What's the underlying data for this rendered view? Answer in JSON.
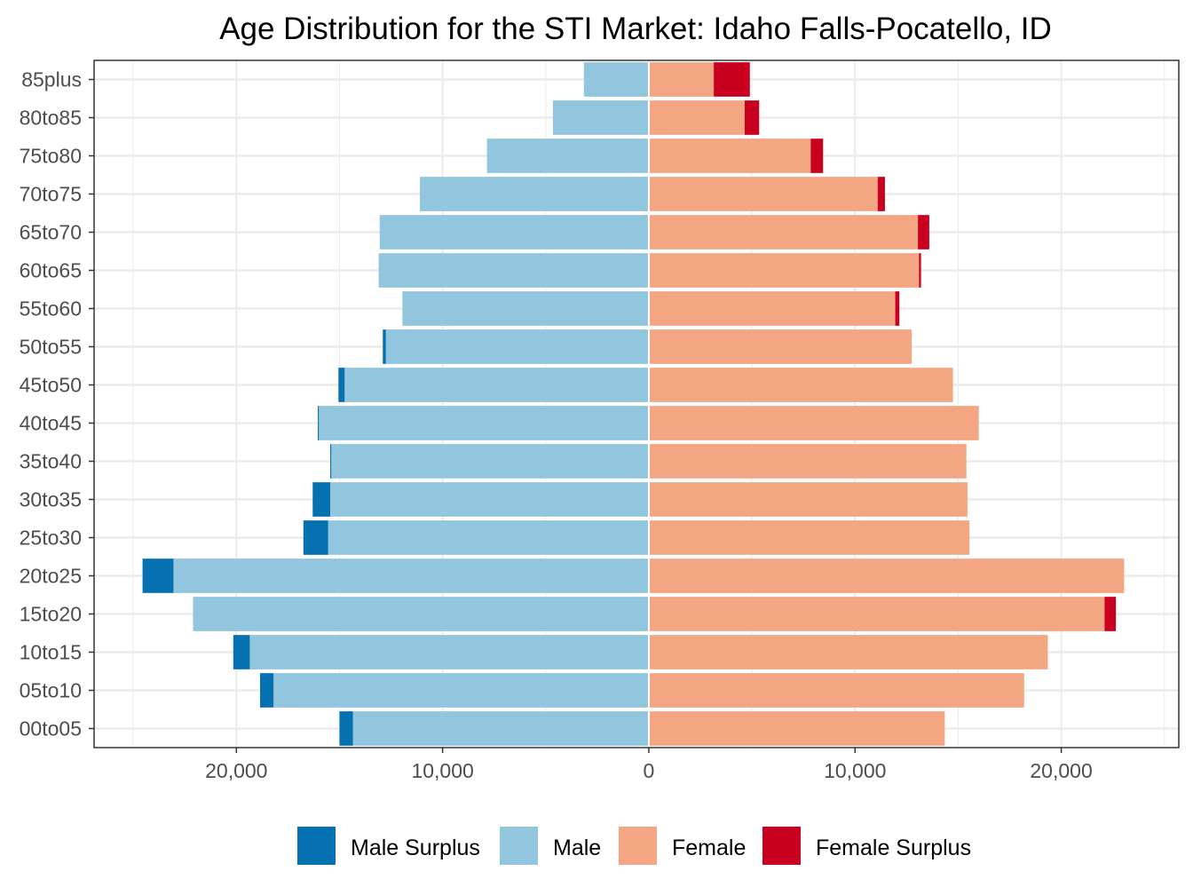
{
  "chart_data": {
    "type": "bar",
    "orientation": "horizontal",
    "title": "Age Distribution for the STI Market: Idaho Falls-Pocatello, ID",
    "xlabel": "",
    "ylabel": "",
    "xlim": [
      -26900,
      25700
    ],
    "x_ticks": [
      -20000,
      -10000,
      0,
      10000,
      20000
    ],
    "x_tick_labels": [
      "20,000",
      "10,000",
      "0",
      "10,000",
      "20,000"
    ],
    "grid": true,
    "legend_position": "bottom",
    "categories": [
      "00to05",
      "05to10",
      "10to15",
      "15to20",
      "20to25",
      "25to30",
      "30to35",
      "35to40",
      "40to45",
      "45to50",
      "50to55",
      "55to60",
      "60to65",
      "65to70",
      "70to75",
      "75to80",
      "80to85",
      "85plus"
    ],
    "male": [
      15000,
      18850,
      20150,
      22100,
      24550,
      16750,
      16300,
      15450,
      16050,
      15050,
      12900,
      11950,
      13100,
      13050,
      11100,
      7850,
      4650,
      3150
    ],
    "female": [
      14350,
      18200,
      19350,
      22650,
      23050,
      15550,
      15450,
      15400,
      16000,
      14750,
      12750,
      12150,
      13200,
      13600,
      11450,
      8450,
      5350,
      4900
    ],
    "series": [
      {
        "name": "Male Surplus",
        "color": "#0571b0"
      },
      {
        "name": "Male",
        "color": "#92c5de"
      },
      {
        "name": "Female",
        "color": "#f4a582"
      },
      {
        "name": "Female Surplus",
        "color": "#ca0020"
      }
    ]
  }
}
